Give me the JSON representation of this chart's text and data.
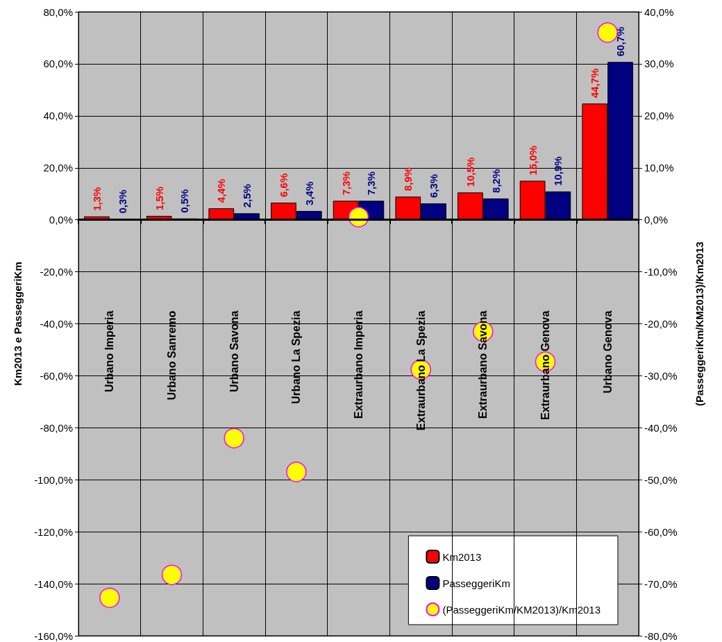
{
  "chart_data": {
    "type": "bar",
    "ylabel": "Km2013 e PasseggeriKm",
    "y2label": "(PasseggeriKm/KM2013)/Km2013",
    "categories": [
      "Urbano Imperia",
      "Urbano Sanremo",
      "Urbano Savona",
      "Urbano La Spezia",
      "Extraurbano Imperia",
      "Extraurbano La Spezia",
      "Extraurbano Savona",
      "Extraurbano Genova",
      "Urbano Genova"
    ],
    "series": [
      {
        "name": "Km2013",
        "color": "#ff0000",
        "values": [
          1.3,
          1.5,
          4.4,
          6.6,
          7.3,
          8.9,
          10.5,
          15.0,
          44.7
        ],
        "value_labels": [
          "1,3%",
          "1,5%",
          "4,4%",
          "6,6%",
          "7,3%",
          "8,9%",
          "10,5%",
          "15,0%",
          "44,7%"
        ]
      },
      {
        "name": "PasseggeriKm",
        "color": "#000080",
        "values": [
          0.3,
          0.5,
          2.5,
          3.4,
          7.3,
          6.3,
          8.2,
          10.9,
          60.7
        ],
        "value_labels": [
          "0,3%",
          "0,5%",
          "2,5%",
          "3,4%",
          "7,3%",
          "6,3%",
          "8,2%",
          "10,9%",
          "60,7%"
        ]
      },
      {
        "name": "(PasseggeriKm/KM2013)/Km2013",
        "type": "scatter",
        "axis": "y2",
        "color": "#ffff00",
        "x": [
          "Urbano Imperia",
          "Urbano Sanremo",
          "Urbano Savona",
          "Urbano La Spezia",
          "Extraurbano Imperia",
          "Extraurbano La Spezia",
          "Extraurbano Savona",
          "Extraurbano Genova",
          "Urbano Genova"
        ],
        "values": [
          -72.7,
          -68.3,
          -42.0,
          -48.5,
          0.5,
          -28.8,
          -21.5,
          -27.3,
          36.0
        ]
      }
    ],
    "ylim": [
      -160,
      80
    ],
    "yticks": [
      {
        "value": -160,
        "label": "-160,0%"
      },
      {
        "value": -140,
        "label": "-140,0%"
      },
      {
        "value": -120,
        "label": "-120,0%"
      },
      {
        "value": -100,
        "label": "-100,0%"
      },
      {
        "value": -80,
        "label": "-80,0%"
      },
      {
        "value": -60,
        "label": "-60,0%"
      },
      {
        "value": -40,
        "label": "-40,0%"
      },
      {
        "value": -20,
        "label": "-20,0%"
      },
      {
        "value": 0,
        "label": "0,0%"
      },
      {
        "value": 20,
        "label": "20,0%"
      },
      {
        "value": 40,
        "label": "40,0%"
      },
      {
        "value": 60,
        "label": "60,0%"
      },
      {
        "value": 80,
        "label": "80,0%"
      }
    ],
    "y2lim": [
      -80,
      40
    ],
    "y2ticks": [
      {
        "value": -80,
        "label": "-80,0%"
      },
      {
        "value": -70,
        "label": "-70,0%"
      },
      {
        "value": -60,
        "label": "-60,0%"
      },
      {
        "value": -50,
        "label": "-50,0%"
      },
      {
        "value": -40,
        "label": "-40,0%"
      },
      {
        "value": -30,
        "label": "-30,0%"
      },
      {
        "value": -20,
        "label": "-20,0%"
      },
      {
        "value": -10,
        "label": "-10,0%"
      },
      {
        "value": 0,
        "label": "0,0%"
      },
      {
        "value": 10,
        "label": "10,0%"
      },
      {
        "value": 20,
        "label": "20,0%"
      },
      {
        "value": 30,
        "label": "30,0%"
      },
      {
        "value": 40,
        "label": "40,0%"
      }
    ],
    "grid": true,
    "legend": "bottom right",
    "marker": "circle"
  }
}
